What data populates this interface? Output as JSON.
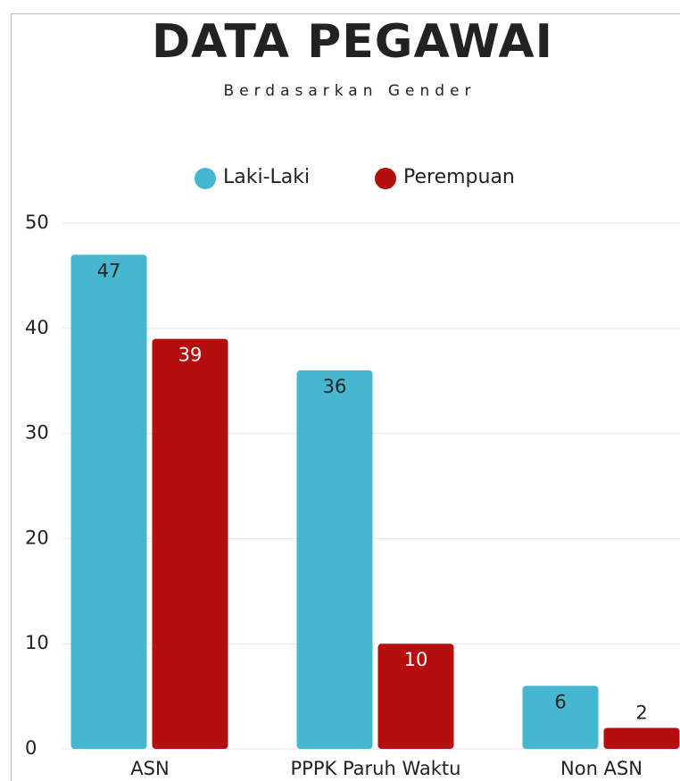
{
  "chart_data": {
    "type": "bar",
    "title": "DATA PEGAWAI",
    "subtitle": "Berdasarkan Gender",
    "categories": [
      "ASN",
      "PPPK Paruh Waktu",
      "Non ASN"
    ],
    "series": [
      {
        "name": "Laki-Laki",
        "color": "#45b8cf",
        "values": [
          47,
          36,
          6
        ]
      },
      {
        "name": "Perempuan",
        "color": "#b50e0e",
        "values": [
          39,
          10,
          2
        ]
      }
    ],
    "ylim": [
      0,
      50
    ],
    "yticks": [
      0,
      10,
      20,
      30,
      40,
      50
    ],
    "grid": true,
    "legend": "top"
  }
}
